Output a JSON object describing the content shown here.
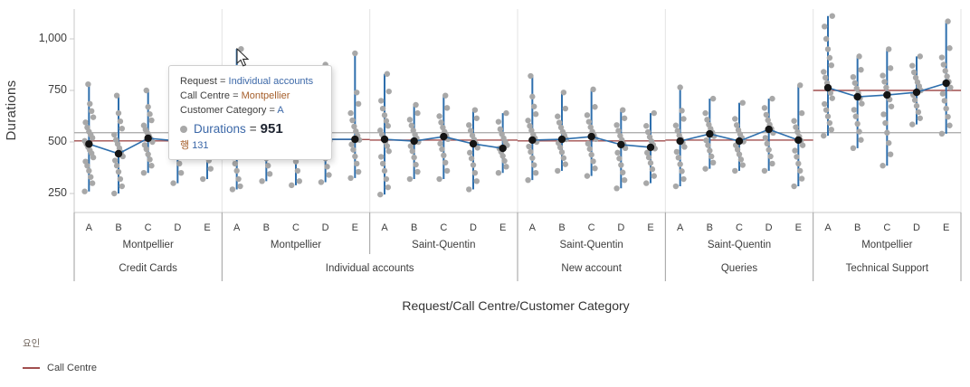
{
  "chart": {
    "y_axis": {
      "title": "Durations",
      "ticks": [
        "1,000",
        "750",
        "500",
        "250"
      ],
      "tick_values": [
        1000,
        750,
        500,
        250
      ]
    },
    "x_axis": {
      "title": "Request/Call Centre/Customer Category"
    },
    "legend": {
      "title": "요인",
      "items": [
        {
          "label": "Call Centre",
          "color": "#a14f4f"
        }
      ]
    },
    "tooltip": {
      "equals": "=",
      "rows": [
        {
          "label": "Request",
          "value": "Individual accounts"
        },
        {
          "label": "Call Centre",
          "value": "Montpellier"
        },
        {
          "label": "Customer Category",
          "value": "A"
        }
      ],
      "measure_label": "Durations",
      "measure_value": "951",
      "row_prefix": "행",
      "row_number": "131"
    },
    "colors": {
      "point": "#a8a8a8",
      "range_line": "#2e6fad",
      "mean_dot": "#141414",
      "factor_line": "#a14f4f",
      "grand_mean_line": "#a6a6a6",
      "gridline": "#e3e3e3",
      "axis_line": "#c9c9c9",
      "separator": "#9e9e9e",
      "text": "#3d3d3d"
    }
  },
  "chart_data": {
    "type": "scatter",
    "subtype": "jittered strip plot with per-category range lines, category means and factor mean lines",
    "x_hierarchy": [
      "Request",
      "Call Centre",
      "Customer Category"
    ],
    "ylabel": "Durations",
    "ylim": [
      160,
      1145
    ],
    "grand_mean_line": 545,
    "groups": [
      {
        "request": "Credit Cards",
        "call_centre": "Montpellier",
        "factor_line": 505,
        "categories": [
          {
            "label": "A",
            "mean": 490,
            "points": [
              260,
              300,
              330,
              360,
              385,
              405,
              425,
              445,
              460,
              475,
              490,
              505,
              520,
              535,
              550,
              570,
              595,
              620,
              650,
              685,
              780
            ]
          },
          {
            "label": "B",
            "mean": 443,
            "points": [
              250,
              285,
              320,
              355,
              385,
              410,
              430,
              450,
              470,
              490,
              510,
              535,
              565,
              600,
              640,
              725
            ]
          },
          {
            "label": "C",
            "mean": 518,
            "points": [
              350,
              385,
              415,
              440,
              465,
              485,
              500,
              515,
              530,
              545,
              560,
              580,
              605,
              635,
              670,
              750
            ]
          },
          {
            "label": "D",
            "mean": 505,
            "points": [
              300,
              350,
              395,
              430,
              460,
              485,
              505,
              525,
              545,
              570,
              600,
              640,
              700
            ]
          },
          {
            "label": "E",
            "mean": 515,
            "points": [
              320,
              370,
              410,
              445,
              475,
              500,
              520,
              540,
              560,
              585,
              615,
              655,
              745
            ]
          }
        ]
      },
      {
        "request": "Individual accounts",
        "call_centre": "Montpellier",
        "factor_line": 512,
        "categories": [
          {
            "label": "A",
            "mean": 510,
            "points": [
              270,
              285,
              320,
              360,
              395,
              425,
              450,
              472,
              492,
              510,
              528,
              548,
              570,
              595,
              625,
              660,
              700,
              951
            ]
          },
          {
            "label": "B",
            "mean": 495,
            "points": [
              310,
              345,
              385,
              420,
              450,
              475,
              497,
              517,
              537,
              560,
              590,
              625,
              670,
              820
            ]
          },
          {
            "label": "C",
            "mean": 515,
            "points": [
              290,
              310,
              360,
              405,
              440,
              470,
              497,
              518,
              538,
              560,
              585,
              615,
              655,
              800
            ]
          },
          {
            "label": "D",
            "mean": 513,
            "points": [
              305,
              340,
              380,
              420,
              455,
              483,
              505,
              525,
              545,
              570,
              600,
              635,
              680,
              730,
              875
            ]
          },
          {
            "label": "E",
            "mean": 513,
            "points": [
              325,
              355,
              395,
              430,
              462,
              488,
              510,
              530,
              552,
              575,
              605,
              640,
              685,
              740,
              930
            ]
          }
        ]
      },
      {
        "request": "Individual accounts",
        "call_centre": "Saint-Quentin",
        "factor_line": 509,
        "categories": [
          {
            "label": "A",
            "mean": 513,
            "points": [
              245,
              280,
              320,
              360,
              395,
              428,
              455,
              480,
              500,
              518,
              536,
              556,
              578,
              602,
              630,
              662,
              700,
              745,
              830
            ]
          },
          {
            "label": "B",
            "mean": 504,
            "points": [
              320,
              355,
              390,
              425,
              455,
              480,
              500,
              518,
              536,
              556,
              580,
              608,
              640,
              680
            ]
          },
          {
            "label": "C",
            "mean": 526,
            "points": [
              320,
              360,
              400,
              435,
              465,
              492,
              514,
              532,
              550,
              570,
              595,
              625,
              665,
              725
            ]
          },
          {
            "label": "D",
            "mean": 491,
            "points": [
              270,
              310,
              350,
              388,
              420,
              448,
              472,
              492,
              512,
              532,
              555,
              582,
              615,
              655
            ]
          },
          {
            "label": "E",
            "mean": 469,
            "points": [
              350,
              380,
              408,
              432,
              452,
              468,
              484,
              500,
              518,
              538,
              562,
              598,
              640
            ]
          }
        ]
      },
      {
        "request": "New account",
        "call_centre": "Saint-Quentin",
        "factor_line": 505,
        "categories": [
          {
            "label": "A",
            "mean": 509,
            "points": [
              315,
              350,
              388,
              422,
              452,
              478,
              500,
              518,
              536,
              556,
              578,
              604,
              635,
              672,
              720,
              820
            ]
          },
          {
            "label": "B",
            "mean": 513,
            "points": [
              360,
              392,
              422,
              450,
              474,
              495,
              513,
              531,
              549,
              570,
              594,
              624,
              662,
              740
            ]
          },
          {
            "label": "C",
            "mean": 526,
            "points": [
              335,
              372,
              406,
              438,
              466,
              492,
              514,
              532,
              550,
              572,
              598,
              630,
              670,
              755
            ]
          },
          {
            "label": "D",
            "mean": 487,
            "points": [
              275,
              315,
              352,
              388,
              420,
              448,
              470,
              490,
              510,
              530,
              554,
              582,
              615,
              655
            ]
          },
          {
            "label": "E",
            "mean": 474,
            "points": [
              300,
              335,
              368,
              398,
              425,
              448,
              468,
              486,
              504,
              524,
              548,
              578,
              640
            ]
          }
        ]
      },
      {
        "request": "Queries",
        "call_centre": "Saint-Quentin",
        "factor_line": 509,
        "categories": [
          {
            "label": "A",
            "mean": 504,
            "points": [
              285,
              320,
              358,
              392,
              424,
              452,
              476,
              496,
              514,
              532,
              554,
              580,
              612,
              652,
              765
            ]
          },
          {
            "label": "B",
            "mean": 539,
            "points": [
              370,
              400,
              430,
              458,
              484,
              508,
              528,
              546,
              564,
              584,
              608,
              640,
              710
            ]
          },
          {
            "label": "C",
            "mean": 504,
            "points": [
              360,
              388,
              415,
              440,
              463,
              484,
              502,
              520,
              538,
              558,
              582,
              612,
              690
            ]
          },
          {
            "label": "D",
            "mean": 561,
            "points": [
              360,
              395,
              430,
              462,
              492,
              520,
              544,
              564,
              584,
              606,
              632,
              665,
              710
            ]
          },
          {
            "label": "E",
            "mean": 509,
            "points": [
              285,
              322,
              360,
              395,
              428,
              458,
              484,
              506,
              526,
              548,
              572,
              602,
              640,
              775
            ]
          }
        ]
      },
      {
        "request": "Technical Support",
        "call_centre": "Montpellier",
        "factor_line": 750,
        "categories": [
          {
            "label": "A",
            "mean": 763,
            "points": [
              530,
              560,
              592,
              624,
              655,
              684,
              712,
              738,
              762,
              786,
              812,
              840,
              872,
              908,
              950,
              1000,
              1060,
              1111
            ]
          },
          {
            "label": "B",
            "mean": 719,
            "points": [
              470,
              510,
              550,
              588,
              624,
              656,
              686,
              712,
              736,
              760,
              786,
              815,
              850,
              915
            ]
          },
          {
            "label": "C",
            "mean": 728,
            "points": [
              385,
              440,
              495,
              545,
              592,
              634,
              672,
              706,
              736,
              764,
              792,
              822,
              858,
              950
            ]
          },
          {
            "label": "D",
            "mean": 741,
            "points": [
              585,
              615,
              645,
              675,
              703,
              728,
              750,
              770,
              790,
              812,
              838,
              870,
              915
            ]
          },
          {
            "label": "E",
            "mean": 785,
            "points": [
              540,
              580,
              622,
              662,
              700,
              734,
              764,
              792,
              818,
              845,
              875,
              910,
              955,
              1085
            ]
          }
        ]
      }
    ],
    "highlighted_point": {
      "request": "Individual accounts",
      "call_centre": "Montpellier",
      "category": "A",
      "value": 951,
      "row": 131
    }
  }
}
